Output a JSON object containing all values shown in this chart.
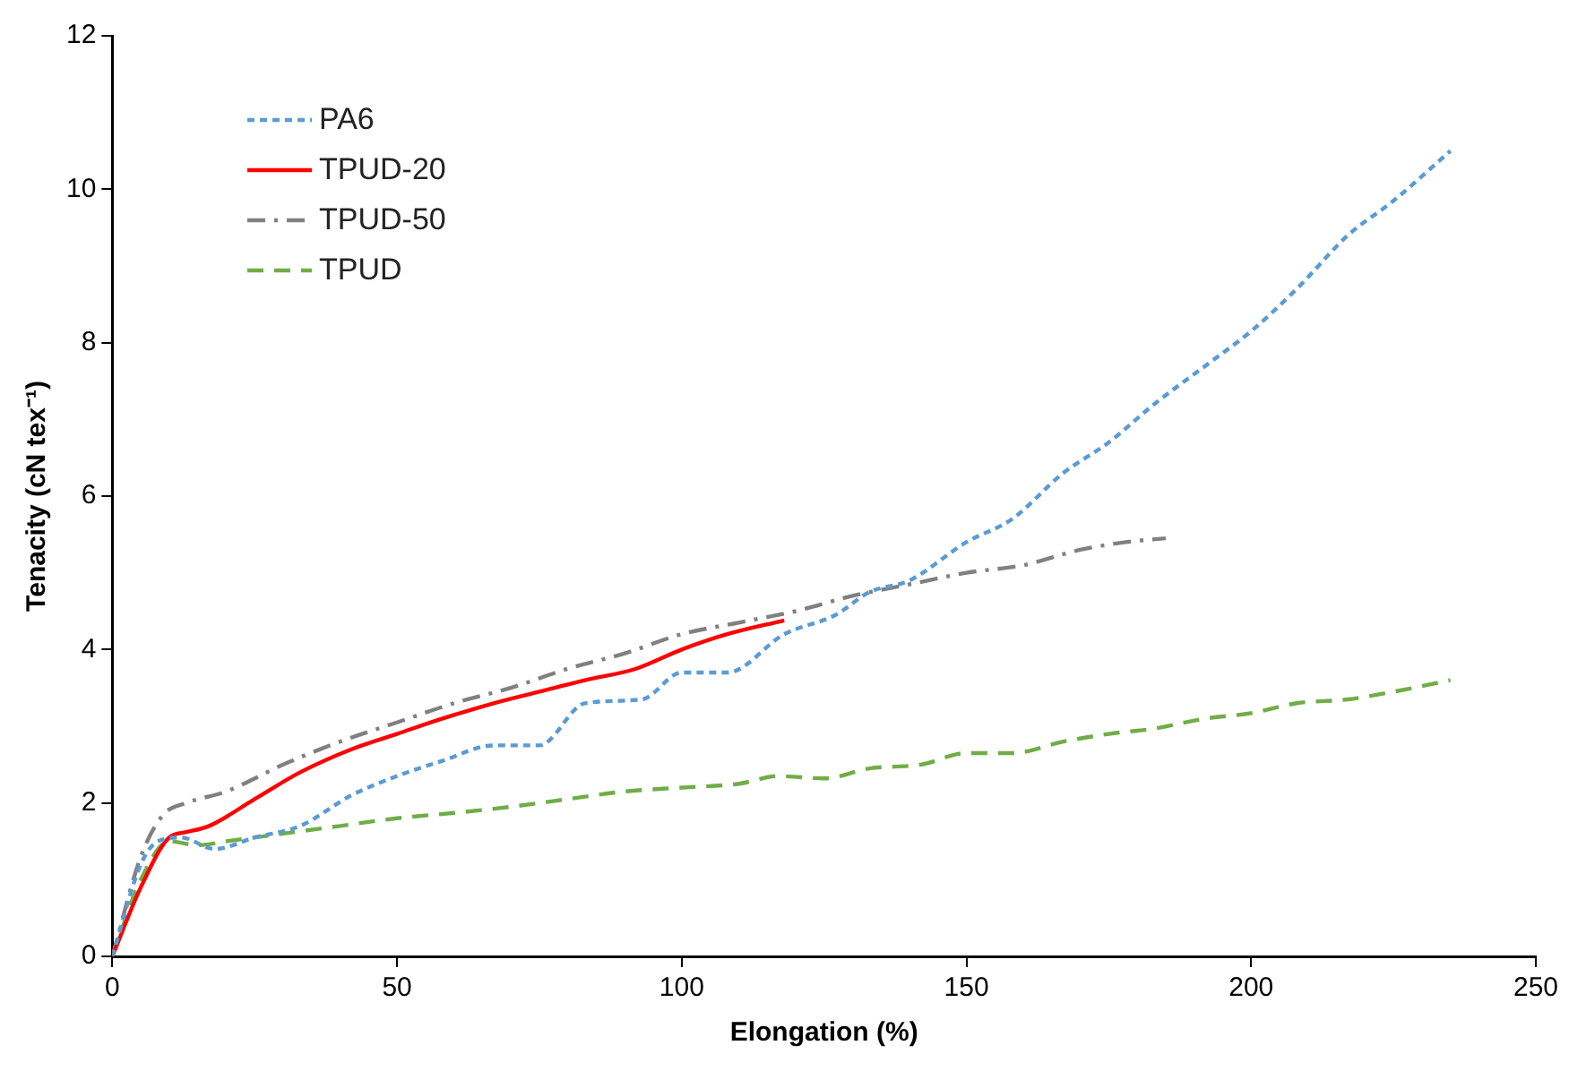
{
  "chart_data": {
    "type": "line",
    "xlabel": "Elongation (%)",
    "ylabel": "Tenacity (cN tex⁻¹)",
    "xlim": [
      0,
      250
    ],
    "xticks": [
      0,
      50,
      100,
      150,
      200,
      250
    ],
    "ylim": [
      0,
      12
    ],
    "yticks": [
      0,
      2,
      4,
      6,
      8,
      10,
      12
    ],
    "grid": false,
    "legend": "top left",
    "marker": "none",
    "series": [
      {
        "name": "PA6",
        "color": "#5b9bd5",
        "line_style": "dotted",
        "x": [
          0,
          5,
          8,
          12,
          18,
          25,
          33,
          42,
          50,
          58,
          67,
          75,
          83,
          93,
          100,
          108,
          118,
          127,
          133,
          140,
          150,
          158,
          167,
          175,
          183,
          192,
          200,
          208,
          217,
          225,
          235
        ],
        "values": [
          0,
          1.2,
          1.5,
          1.55,
          1.4,
          1.55,
          1.7,
          2.1,
          2.35,
          2.55,
          2.75,
          2.75,
          3.3,
          3.35,
          3.7,
          3.7,
          4.2,
          4.45,
          4.75,
          4.9,
          5.4,
          5.7,
          6.3,
          6.7,
          7.2,
          7.7,
          8.15,
          8.7,
          9.4,
          9.85,
          10.5
        ]
      },
      {
        "name": "TPUD-20",
        "color": "#ff0000",
        "line_style": "solid",
        "x": [
          0,
          5,
          10,
          13,
          17,
          25,
          33,
          42,
          50,
          58,
          67,
          75,
          83,
          92,
          100,
          108,
          118
        ],
        "values": [
          0,
          0.9,
          1.55,
          1.62,
          1.7,
          2.05,
          2.4,
          2.7,
          2.9,
          3.1,
          3.3,
          3.45,
          3.6,
          3.75,
          4.0,
          4.2,
          4.38
        ]
      },
      {
        "name": "TPUD-50",
        "color": "#808080",
        "line_style": "dashdot",
        "x": [
          0,
          5,
          9,
          13,
          20,
          30,
          40,
          50,
          60,
          70,
          80,
          90,
          100,
          110,
          120,
          130,
          140,
          150,
          160,
          170,
          178,
          185
        ],
        "values": [
          0,
          1.3,
          1.85,
          2.0,
          2.15,
          2.5,
          2.8,
          3.05,
          3.3,
          3.5,
          3.75,
          3.95,
          4.2,
          4.35,
          4.5,
          4.7,
          4.85,
          5.0,
          5.1,
          5.3,
          5.4,
          5.45
        ]
      },
      {
        "name": "TPUD",
        "color": "#70ad47",
        "line_style": "dashed",
        "x": [
          0,
          5,
          10,
          15,
          20,
          30,
          40,
          50,
          60,
          70,
          80,
          90,
          100,
          110,
          117,
          125,
          133,
          142,
          150,
          158,
          167,
          175,
          183,
          192,
          200,
          208,
          217,
          225,
          235
        ],
        "values": [
          0,
          1.0,
          1.5,
          1.45,
          1.5,
          1.6,
          1.7,
          1.8,
          1.87,
          1.95,
          2.05,
          2.15,
          2.2,
          2.25,
          2.35,
          2.32,
          2.45,
          2.5,
          2.65,
          2.65,
          2.8,
          2.9,
          2.97,
          3.1,
          3.17,
          3.3,
          3.35,
          3.45,
          3.6
        ]
      }
    ]
  }
}
